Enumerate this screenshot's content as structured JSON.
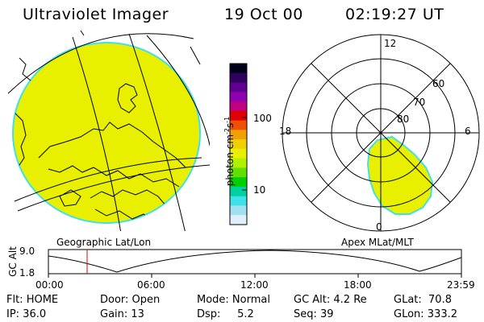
{
  "header": {
    "title": "Ultraviolet Imager",
    "date": "19 Oct 00",
    "time": "02:19:27 UT"
  },
  "colors": {
    "fill": "#e8f000",
    "edge": "#40e0e8"
  },
  "colorbar": {
    "unit": "photon cm",
    "unit_exp1": "-2",
    "unit_mid": "s",
    "unit_exp2": "-1",
    "tick_high": "100",
    "tick_low": "10",
    "colors": [
      "#000018",
      "#300060",
      "#600090",
      "#9000b0",
      "#c00080",
      "#e00000",
      "#f05000",
      "#f0a000",
      "#f0d000",
      "#e8f000",
      "#b0f000",
      "#60e000",
      "#00d000",
      "#00d0a0",
      "#40e0e8",
      "#a0e0f0",
      "#e0f0f8"
    ]
  },
  "geo_panel": {
    "label": "Geographic Lat/Lon"
  },
  "apex_panel": {
    "label": "Apex MLat/MLT",
    "mlt_labels": {
      "top": "12",
      "left": "18",
      "right": "6",
      "bottom": "0"
    },
    "lat_labels": [
      "60",
      "70",
      "80"
    ]
  },
  "altitude_plot": {
    "ylabel": "GC Alt",
    "ymax": "9.0",
    "ymin": "1.8",
    "ticks": [
      "00:00",
      "06:00",
      "12:00",
      "18:00",
      "23:59"
    ],
    "marker_color": "#e00000"
  },
  "info": {
    "flt": "Flt: HOME",
    "ip": "IP: 36.0",
    "door": "Door: Open",
    "gain": "Gain: 13",
    "mode": "Mode: Normal",
    "dsp": "Dsp:     5.2",
    "gcalt": "GC Alt: 4.2 Re",
    "seq": "Seq: 39",
    "glat": "GLat:  70.8",
    "glon": "GLon: 333.2"
  }
}
